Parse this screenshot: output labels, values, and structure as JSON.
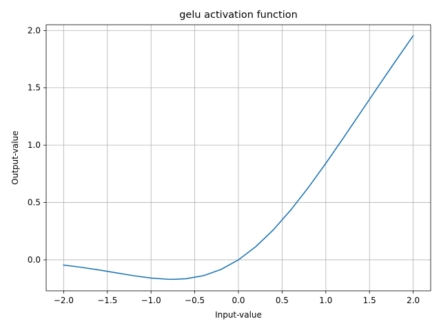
{
  "chart_data": {
    "type": "line",
    "title": "gelu activation function",
    "xlabel": "Input-value",
    "ylabel": "Output-value",
    "xlim": [
      -2.2,
      2.2
    ],
    "ylim": [
      -0.27,
      2.05
    ],
    "xticks": [
      -2.0,
      -1.5,
      -1.0,
      -0.5,
      0.0,
      0.5,
      1.0,
      1.5,
      2.0
    ],
    "xtick_labels": [
      "−2.0",
      "−1.5",
      "−1.0",
      "−0.5",
      "0.0",
      "0.5",
      "1.0",
      "1.5",
      "2.0"
    ],
    "yticks": [
      0.0,
      0.5,
      1.0,
      1.5,
      2.0
    ],
    "ytick_labels": [
      "0.0",
      "0.5",
      "1.0",
      "1.5",
      "2.0"
    ],
    "grid": true,
    "series": [
      {
        "color": "#1f77b4",
        "x": [
          -2.0,
          -1.8,
          -1.6,
          -1.4,
          -1.2,
          -1.0,
          -0.8,
          -0.75,
          -0.6,
          -0.4,
          -0.2,
          0.0,
          0.2,
          0.4,
          0.6,
          0.8,
          1.0,
          1.2,
          1.4,
          1.6,
          1.8,
          2.0
        ],
        "y": [
          -0.0455,
          -0.0647,
          -0.0877,
          -0.1131,
          -0.1381,
          -0.1587,
          -0.1695,
          -0.17,
          -0.1646,
          -0.1379,
          -0.0841,
          0.0,
          0.1159,
          0.2621,
          0.4354,
          0.6305,
          0.8413,
          1.0619,
          1.2869,
          1.5123,
          1.7353,
          1.9545
        ]
      }
    ]
  }
}
